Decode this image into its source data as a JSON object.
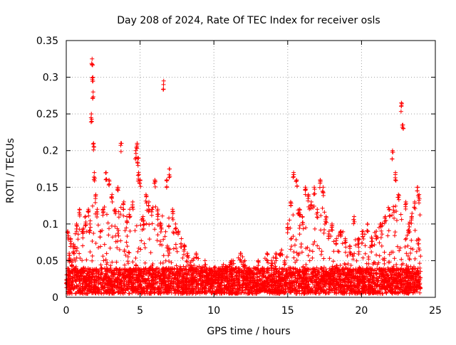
{
  "chart_data": {
    "type": "scatter",
    "title": "Day 208 of 2024, Rate Of TEC Index for receiver osls",
    "xlabel": "GPS time / hours",
    "ylabel": "ROTI / TECUs",
    "xlim": [
      0,
      25
    ],
    "ylim": [
      0,
      0.35
    ],
    "xticks": [
      0,
      5,
      10,
      15,
      20,
      25
    ],
    "xtick_labels": [
      "0",
      "5",
      "10",
      "15",
      "20",
      "25"
    ],
    "yticks": [
      0,
      0.05,
      0.1,
      0.15,
      0.2,
      0.25,
      0.3,
      0.35
    ],
    "ytick_labels": [
      "0",
      "0.05",
      "0.1",
      "0.15",
      "0.2",
      "0.25",
      "0.3",
      "0.35"
    ],
    "grid": true,
    "marker": "plus",
    "color": "#ff0000",
    "series": [
      {
        "name": "ROTI",
        "x": [
          0.1,
          0.2,
          0.3,
          0.4,
          0.5,
          0.7,
          0.9,
          1.1,
          1.3,
          1.5,
          1.6,
          1.7,
          1.75,
          1.8,
          1.82,
          1.85,
          1.9,
          2.0,
          2.1,
          2.3,
          2.5,
          2.7,
          2.9,
          3.1,
          3.3,
          3.5,
          3.7,
          3.9,
          4.1,
          4.3,
          4.5,
          4.7,
          4.8,
          4.85,
          4.9,
          5.0,
          5.2,
          5.4,
          5.6,
          5.8,
          6.0,
          6.2,
          6.4,
          6.6,
          6.8,
          7.0,
          7.2,
          7.4,
          7.6,
          7.8,
          8.0,
          8.2,
          8.5,
          8.8,
          9.1,
          9.4,
          9.7,
          10.0,
          10.3,
          10.6,
          10.9,
          11.2,
          11.5,
          11.8,
          12.1,
          12.4,
          12.7,
          13.0,
          13.3,
          13.6,
          13.9,
          14.2,
          14.5,
          14.8,
          15.0,
          15.2,
          15.4,
          15.6,
          15.8,
          16.0,
          16.2,
          16.4,
          16.6,
          16.8,
          17.0,
          17.2,
          17.4,
          17.6,
          17.8,
          18.0,
          18.3,
          18.6,
          18.9,
          19.2,
          19.5,
          19.8,
          20.1,
          20.4,
          20.7,
          21.0,
          21.3,
          21.6,
          21.9,
          22.1,
          22.3,
          22.5,
          22.7,
          22.8,
          23.0,
          23.2,
          23.4,
          23.6,
          23.8,
          23.9
        ],
        "y": [
          0.09,
          0.06,
          0.08,
          0.05,
          0.07,
          0.1,
          0.12,
          0.09,
          0.11,
          0.12,
          0.1,
          0.25,
          0.325,
          0.3,
          0.28,
          0.21,
          0.17,
          0.14,
          0.12,
          0.09,
          0.12,
          0.17,
          0.16,
          0.14,
          0.12,
          0.15,
          0.21,
          0.13,
          0.11,
          0.12,
          0.13,
          0.2,
          0.21,
          0.19,
          0.17,
          0.16,
          0.11,
          0.14,
          0.13,
          0.12,
          0.16,
          0.12,
          0.1,
          0.295,
          0.16,
          0.175,
          0.12,
          0.1,
          0.09,
          0.08,
          0.07,
          0.06,
          0.05,
          0.06,
          0.04,
          0.05,
          0.04,
          0.04,
          0.03,
          0.04,
          0.04,
          0.05,
          0.04,
          0.06,
          0.05,
          0.04,
          0.04,
          0.05,
          0.04,
          0.06,
          0.05,
          0.06,
          0.06,
          0.05,
          0.1,
          0.13,
          0.17,
          0.16,
          0.12,
          0.11,
          0.15,
          0.14,
          0.13,
          0.15,
          0.12,
          0.16,
          0.15,
          0.11,
          0.09,
          0.1,
          0.08,
          0.09,
          0.08,
          0.07,
          0.11,
          0.08,
          0.09,
          0.1,
          0.08,
          0.09,
          0.1,
          0.11,
          0.12,
          0.2,
          0.17,
          0.14,
          0.265,
          0.235,
          0.13,
          0.1,
          0.11,
          0.13,
          0.15,
          0.14
        ]
      },
      {
        "name": "ROTI baseline band",
        "hour_range": [
          0,
          24
        ],
        "level_min": 0.005,
        "level_max": 0.04
      }
    ]
  }
}
